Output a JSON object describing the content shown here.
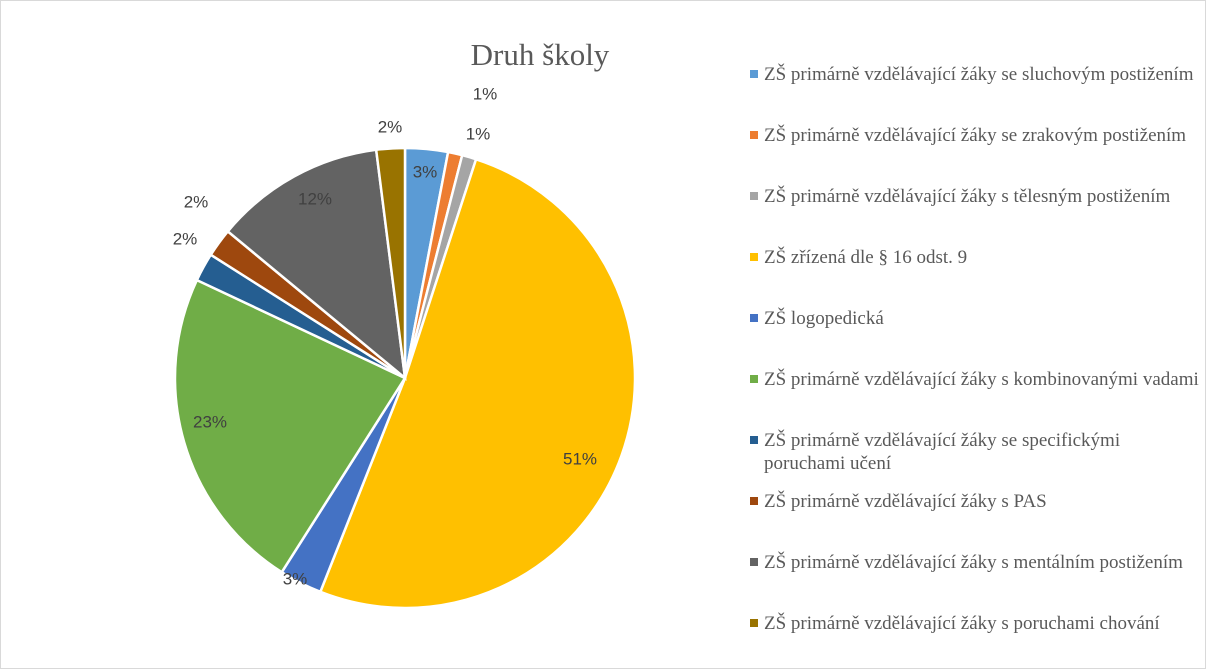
{
  "chart_data": {
    "type": "pie",
    "title": "Druh školy",
    "categories": [
      "ZŠ primárně vzdělávající žáky se sluchovým postižením",
      "ZŠ primárně vzdělávající žáky se zrakovým postižením",
      "ZŠ primárně vzdělávající žáky s tělesným postižením",
      "ZŠ zřízená dle § 16 odst. 9",
      "ZŠ logopedická",
      "ZŠ primárně vzdělávající žáky s kombinovanými vadami",
      "ZŠ primárně vzdělávající žáky se specifickými poruchami učení",
      "ZŠ primárně vzdělávající žáky s PAS",
      "ZŠ primárně vzdělávající žáky s mentálním postižením",
      "ZŠ primárně vzdělávající žáky s poruchami chování"
    ],
    "values": [
      3,
      1,
      1,
      51,
      3,
      23,
      2,
      2,
      12,
      2
    ],
    "value_labels": [
      "3%",
      "1%",
      "1%",
      "51%",
      "3%",
      "23%",
      "2%",
      "2%",
      "12%",
      "2%"
    ],
    "colors": [
      "#5b9bd5",
      "#ed7d31",
      "#a5a5a5",
      "#ffc000",
      "#4472c4",
      "#70ad47",
      "#255e91",
      "#9e480e",
      "#636363",
      "#997300"
    ],
    "legend": "right"
  }
}
